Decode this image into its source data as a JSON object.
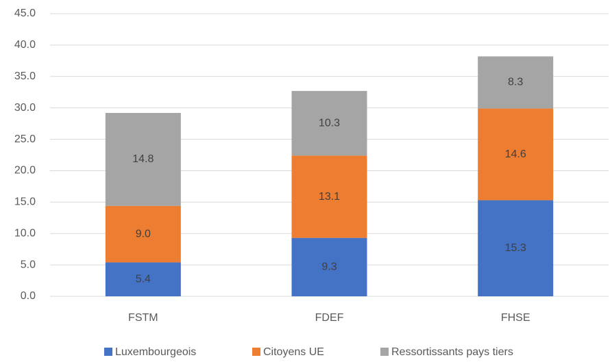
{
  "chart_data": {
    "type": "stacked_bar",
    "categories": [
      "FSTM",
      "FDEF",
      "FHSE"
    ],
    "series": [
      {
        "name": "Luxembourgeois",
        "color": "#4472c4",
        "values": [
          5.4,
          9.3,
          15.3
        ],
        "value_labels": [
          "5.4",
          "9.3",
          "15.3"
        ]
      },
      {
        "name": "Citoyens UE",
        "color": "#ed7d31",
        "values": [
          9.0,
          13.1,
          14.6
        ],
        "value_labels": [
          "9.0",
          "13.1",
          "14.6"
        ]
      },
      {
        "name": "Ressortissants pays tiers",
        "color": "#a5a5a5",
        "values": [
          14.8,
          10.3,
          8.3
        ],
        "value_labels": [
          "14.8",
          "10.3",
          "8.3"
        ]
      }
    ],
    "ylim": [
      0,
      45
    ],
    "yticks": [
      {
        "value": 0,
        "label": "0.0"
      },
      {
        "value": 5,
        "label": "5.0"
      },
      {
        "value": 10,
        "label": "10.0"
      },
      {
        "value": 15,
        "label": "15.0"
      },
      {
        "value": 20,
        "label": "20.0"
      },
      {
        "value": 25,
        "label": "25.0"
      },
      {
        "value": 30,
        "label": "30.0"
      },
      {
        "value": 35,
        "label": "35.0"
      },
      {
        "value": 40,
        "label": "40.0"
      },
      {
        "value": 45,
        "label": "45.0"
      }
    ],
    "grid": true,
    "legend": "bottom"
  }
}
